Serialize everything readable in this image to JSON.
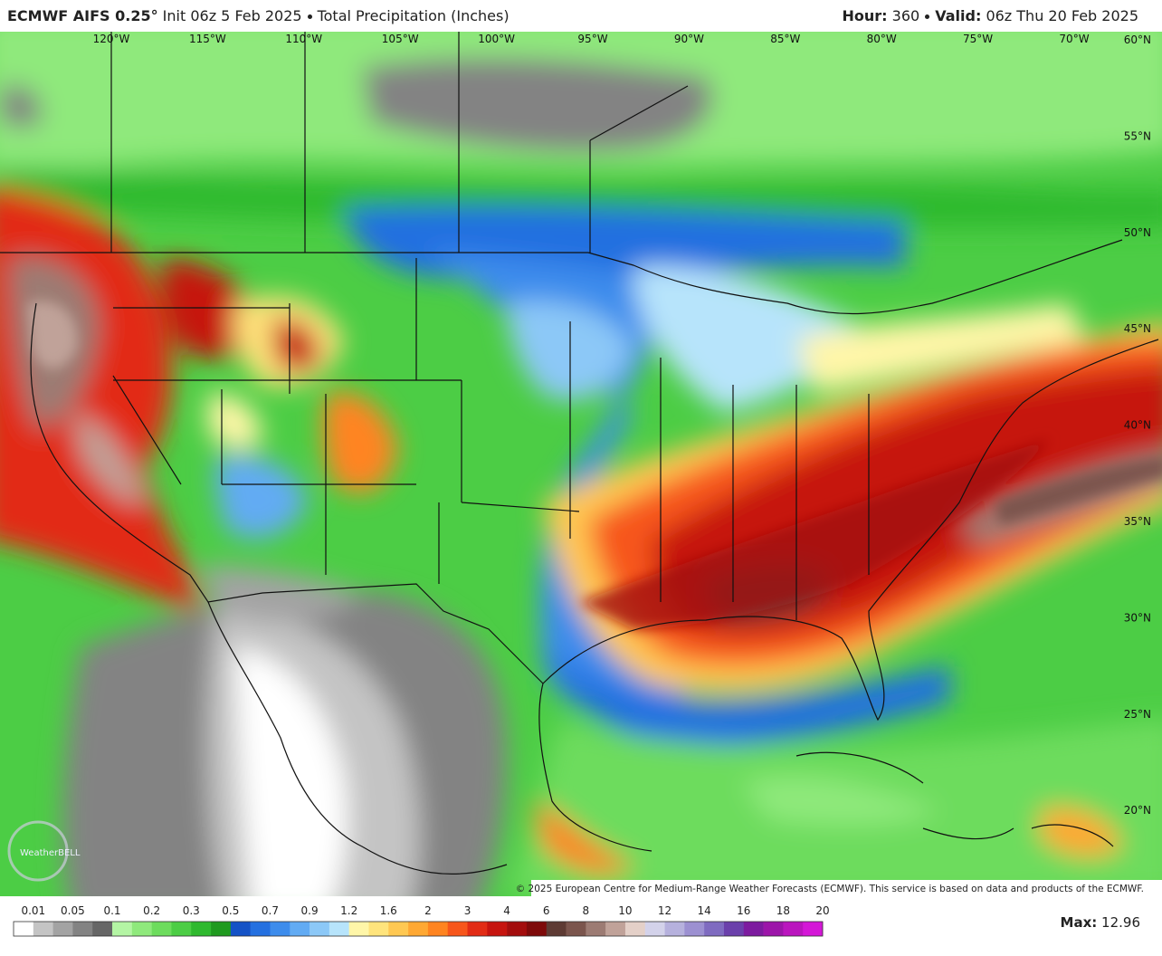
{
  "header": {
    "model": "ECMWF AIFS 0.25°",
    "init": "Init 06z 5 Feb 2025",
    "field": "Total Precipitation (Inches)",
    "hour_label": "Hour:",
    "hour": "360",
    "valid_label": "Valid:",
    "valid": "06z Thu 20 Feb 2025"
  },
  "map": {
    "longitudes": [
      "120°W",
      "115°W",
      "110°W",
      "105°W",
      "100°W",
      "95°W",
      "90°W",
      "85°W",
      "80°W",
      "75°W",
      "70°W"
    ],
    "latitudes": [
      "60°N",
      "55°N",
      "50°N",
      "45°N",
      "40°N",
      "35°N",
      "30°N",
      "25°N",
      "20°N"
    ],
    "logo": "WeatherBELL",
    "copyright": "© 2025 European Centre for Medium-Range Weather Forecasts (ECMWF). This service is based on data and products of the ECMWF."
  },
  "colorbar": {
    "ticks": [
      0.01,
      0.05,
      0.1,
      0.2,
      0.3,
      0.5,
      0.7,
      0.9,
      1.2,
      1.6,
      2,
      3,
      4,
      6,
      8,
      10,
      12,
      14,
      16,
      18,
      20
    ],
    "colors": [
      "#ffffff",
      "#c4c4c4",
      "#a3a3a3",
      "#838383",
      "#666666",
      "#b4f5a4",
      "#8fe97c",
      "#6ddc5d",
      "#4ccd45",
      "#2fb92f",
      "#1f9a1f",
      "#1452c6",
      "#2470e0",
      "#3d8cec",
      "#62abf3",
      "#8cc8f7",
      "#b7e4fb",
      "#fff6a8",
      "#ffe47c",
      "#ffc852",
      "#ffa833",
      "#ff8420",
      "#f7561b",
      "#e22c15",
      "#c6140f",
      "#a30d0d",
      "#7e0a0a",
      "#5e3b34",
      "#7b554d",
      "#9c7b73",
      "#c0a299",
      "#e4d0c8",
      "#d3d2ea",
      "#b6b1dd",
      "#9c90d1",
      "#7f6bc0",
      "#6b40ab",
      "#7d1b9f",
      "#9c15a9",
      "#ba15be",
      "#d417d7"
    ]
  },
  "max": {
    "label": "Max:",
    "value": 12.96
  }
}
